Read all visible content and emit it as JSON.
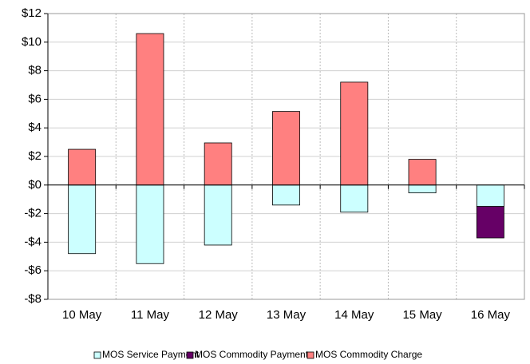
{
  "chart_data": {
    "type": "bar",
    "stacked": true,
    "categories": [
      "10 May",
      "11 May",
      "12 May",
      "13 May",
      "14 May",
      "15 May",
      "16 May"
    ],
    "series": [
      {
        "name": "MOS Service Payment",
        "color": "#ccffff",
        "values": [
          -4.8,
          -5.5,
          -4.2,
          -1.4,
          -1.9,
          -0.55,
          -1.5
        ]
      },
      {
        "name": "MOS Commodity Payment",
        "color": "#660066",
        "values": [
          0,
          0,
          0,
          0,
          0,
          0,
          -2.2
        ]
      },
      {
        "name": "MOS Commodity Charge",
        "color": "#ff8080",
        "values": [
          2.5,
          10.6,
          2.95,
          5.15,
          7.2,
          1.8,
          0
        ]
      }
    ],
    "ylim": [
      -8,
      12
    ],
    "yticks": [
      {
        "value": -8,
        "label": "-$8"
      },
      {
        "value": -6,
        "label": "-$6"
      },
      {
        "value": -4,
        "label": "-$4"
      },
      {
        "value": -2,
        "label": "-$2"
      },
      {
        "value": 0,
        "label": "$0"
      },
      {
        "value": 2,
        "label": "$2"
      },
      {
        "value": 4,
        "label": "$4"
      },
      {
        "value": 6,
        "label": "$6"
      },
      {
        "value": 8,
        "label": "$8"
      },
      {
        "value": 10,
        "label": "$10"
      },
      {
        "value": 12,
        "label": "$12"
      }
    ],
    "grid": true,
    "legend": "bottom"
  }
}
